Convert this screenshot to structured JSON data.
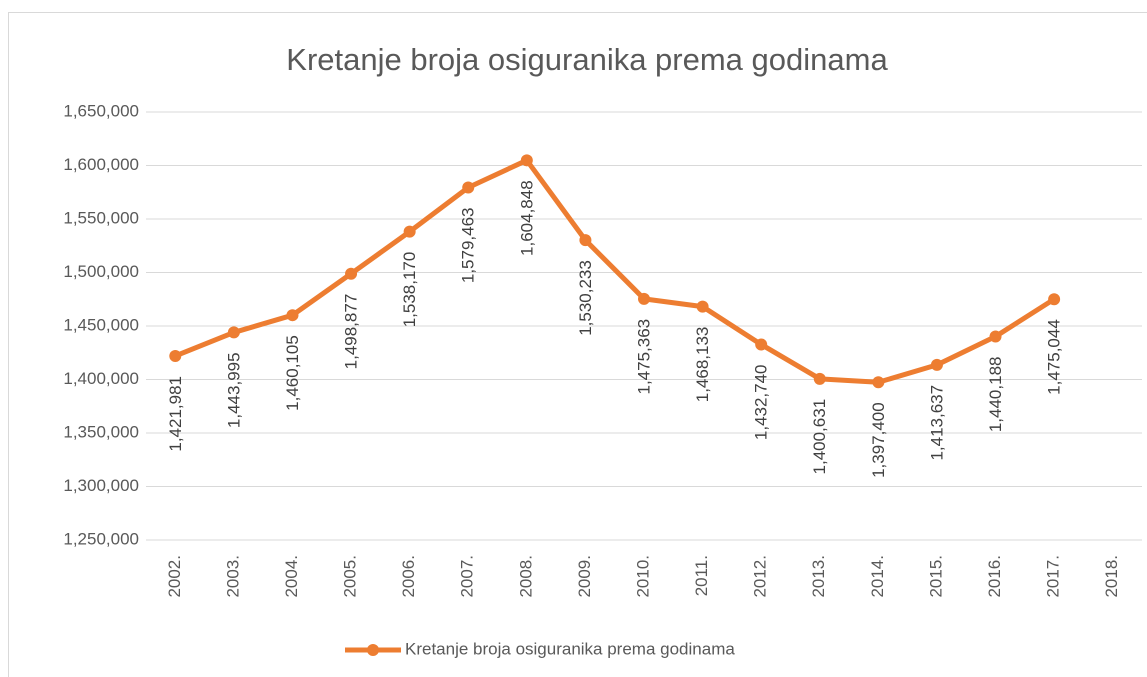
{
  "chart_data": {
    "type": "line",
    "title": "Kretanje broja osiguranika prema godinama",
    "categories": [
      "2002.",
      "2003.",
      "2004.",
      "2005.",
      "2006.",
      "2007.",
      "2008.",
      "2009.",
      "2010.",
      "2011.",
      "2012.",
      "2013.",
      "2014.",
      "2015.",
      "2016.",
      "2017.",
      "2018."
    ],
    "series": [
      {
        "name": "Kretanje broja osiguranika prema godinama",
        "color": "#ed7d31",
        "values": [
          1421981,
          1443995,
          1460105,
          1498877,
          1538170,
          1579463,
          1604848,
          1530233,
          1475363,
          1468133,
          1432740,
          1400631,
          1397400,
          1413637,
          1440188,
          1475044,
          null
        ],
        "value_labels": [
          "1,421,981",
          "1,443,995",
          "1,460,105",
          "1,498,877",
          "1,538,170",
          "1,579,463",
          "1,604,848",
          "1,530,233",
          "1,475,363",
          "1,468,133",
          "1,432,740",
          "1,400,631",
          "1,397,400",
          "1,413,637",
          "1,440,188",
          "1,475,044",
          null
        ]
      }
    ],
    "ylim": [
      1250000,
      1650000
    ],
    "yticks": [
      {
        "value": 1250000,
        "label": "1,250,000"
      },
      {
        "value": 1300000,
        "label": "1,300,000"
      },
      {
        "value": 1350000,
        "label": "1,350,000"
      },
      {
        "value": 1400000,
        "label": "1,400,000"
      },
      {
        "value": 1450000,
        "label": "1,450,000"
      },
      {
        "value": 1500000,
        "label": "1,500,000"
      },
      {
        "value": 1550000,
        "label": "1,550,000"
      },
      {
        "value": 1600000,
        "label": "1,600,000"
      },
      {
        "value": 1650000,
        "label": "1,650,000"
      }
    ],
    "grid": true,
    "legend": "bottom"
  }
}
